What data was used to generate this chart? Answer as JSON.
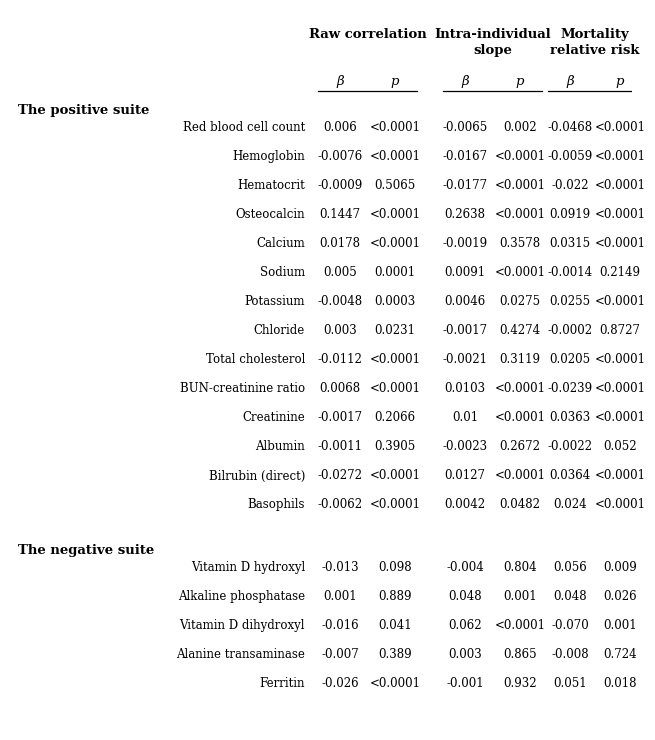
{
  "col_headers": [
    "Raw correlation",
    "Intra-individual\nslope",
    "Mortality\nrelative risk"
  ],
  "sub_headers": [
    "β",
    "p",
    "β",
    "p",
    "β",
    "p"
  ],
  "positive_suite_label": "The positive suite",
  "negative_suite_label": "The negative suite",
  "rows": [
    {
      "name": "Red blood cell count",
      "values": [
        "0.006",
        "<0.0001",
        "-0.0065",
        "0.002",
        "-0.0468",
        "<0.0001"
      ]
    },
    {
      "name": "Hemoglobin",
      "values": [
        "-0.0076",
        "<0.0001",
        "-0.0167",
        "<0.0001",
        "-0.0059",
        "<0.0001"
      ]
    },
    {
      "name": "Hematocrit",
      "values": [
        "-0.0009",
        "0.5065",
        "-0.0177",
        "<0.0001",
        "-0.022",
        "<0.0001"
      ]
    },
    {
      "name": "Osteocalcin",
      "values": [
        "0.1447",
        "<0.0001",
        "0.2638",
        "<0.0001",
        "0.0919",
        "<0.0001"
      ]
    },
    {
      "name": "Calcium",
      "values": [
        "0.0178",
        "<0.0001",
        "-0.0019",
        "0.3578",
        "0.0315",
        "<0.0001"
      ]
    },
    {
      "name": "Sodium",
      "values": [
        "0.005",
        "0.0001",
        "0.0091",
        "<0.0001",
        "-0.0014",
        "0.2149"
      ]
    },
    {
      "name": "Potassium",
      "values": [
        "-0.0048",
        "0.0003",
        "0.0046",
        "0.0275",
        "0.0255",
        "<0.0001"
      ]
    },
    {
      "name": "Chloride",
      "values": [
        "0.003",
        "0.0231",
        "-0.0017",
        "0.4274",
        "-0.0002",
        "0.8727"
      ]
    },
    {
      "name": "Total cholesterol",
      "values": [
        "-0.0112",
        "<0.0001",
        "-0.0021",
        "0.3119",
        "0.0205",
        "<0.0001"
      ]
    },
    {
      "name": "BUN-creatinine ratio",
      "values": [
        "0.0068",
        "<0.0001",
        "0.0103",
        "<0.0001",
        "-0.0239",
        "<0.0001"
      ]
    },
    {
      "name": "Creatinine",
      "values": [
        "-0.0017",
        "0.2066",
        "0.01",
        "<0.0001",
        "0.0363",
        "<0.0001"
      ]
    },
    {
      "name": "Albumin",
      "values": [
        "-0.0011",
        "0.3905",
        "-0.0023",
        "0.2672",
        "-0.0022",
        "0.052"
      ]
    },
    {
      "name": "Bilrubin (direct)",
      "values": [
        "-0.0272",
        "<0.0001",
        "0.0127",
        "<0.0001",
        "0.0364",
        "<0.0001"
      ]
    },
    {
      "name": "Basophils",
      "values": [
        "-0.0062",
        "<0.0001",
        "0.0042",
        "0.0482",
        "0.024",
        "<0.0001"
      ]
    }
  ],
  "negative_rows": [
    {
      "name": "Vitamin D hydroxyl",
      "values": [
        "-0.013",
        "0.098",
        "-0.004",
        "0.804",
        "0.056",
        "0.009"
      ]
    },
    {
      "name": "Alkaline phosphatase",
      "values": [
        "0.001",
        "0.889",
        "0.048",
        "0.001",
        "0.048",
        "0.026"
      ]
    },
    {
      "name": "Vitamin D dihydroxyl",
      "values": [
        "-0.016",
        "0.041",
        "0.062",
        "<0.0001",
        "-0.070",
        "0.001"
      ]
    },
    {
      "name": "Alanine transaminase",
      "values": [
        "-0.007",
        "0.389",
        "0.003",
        "0.865",
        "-0.008",
        "0.724"
      ]
    },
    {
      "name": "Ferritin",
      "values": [
        "-0.026",
        "<0.0001",
        "-0.001",
        "0.932",
        "0.051",
        "0.018"
      ]
    }
  ],
  "bg_color": "#ffffff",
  "text_color": "#000000",
  "font_size": 8.5,
  "header_font_size": 9.5
}
